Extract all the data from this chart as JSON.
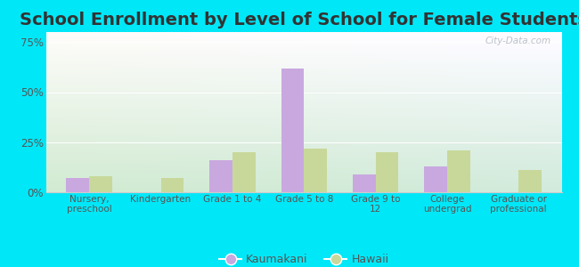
{
  "title": "School Enrollment by Level of School for Female Students",
  "categories": [
    "Nursery,\npreschool",
    "Kindergarten",
    "Grade 1 to 4",
    "Grade 5 to 8",
    "Grade 9 to\n12",
    "College\nundergrad",
    "Graduate or\nprofessional"
  ],
  "kaumakani": [
    7,
    0,
    16,
    62,
    9,
    13,
    0
  ],
  "hawaii": [
    8,
    7,
    20,
    22,
    20,
    21,
    11
  ],
  "kaumakani_color": "#c9a8e0",
  "hawaii_color": "#c8d89a",
  "ylim": [
    0,
    80
  ],
  "yticks": [
    0,
    25,
    50,
    75
  ],
  "yticklabels": [
    "0%",
    "25%",
    "50%",
    "75%"
  ],
  "background_outer": "#00e8f8",
  "title_fontsize": 14,
  "legend_labels": [
    "Kaumakani",
    "Hawaii"
  ],
  "watermark": "City-Data.com",
  "bar_width": 0.32
}
